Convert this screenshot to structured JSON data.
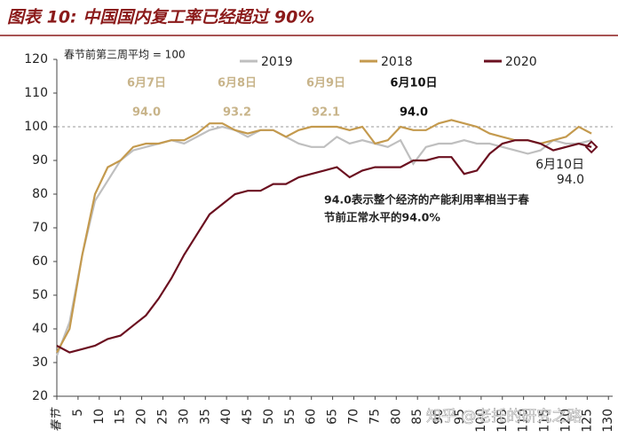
{
  "chart_data": {
    "type": "line",
    "title": "图表 10:  中国国内复工率已经超过 90%",
    "base_note": "春节前第三周平均 = 100",
    "x": [
      0,
      3,
      6,
      9,
      12,
      15,
      18,
      21,
      24,
      27,
      30,
      33,
      36,
      39,
      42,
      45,
      48,
      51,
      54,
      57,
      60,
      63,
      66,
      69,
      72,
      75,
      78,
      81,
      84,
      87,
      90,
      93,
      96,
      99,
      102,
      105,
      108,
      111,
      114,
      117,
      120,
      123,
      126
    ],
    "series": [
      {
        "name": "2019",
        "color": "#bfbfbf",
        "values": [
          32,
          42,
          62,
          78,
          84,
          90,
          93,
          94,
          95,
          96,
          95,
          97,
          99,
          100,
          99,
          97,
          99,
          99,
          97,
          95,
          94,
          94,
          97,
          95,
          96,
          95,
          94,
          96,
          89,
          94,
          95,
          95,
          96,
          95,
          95,
          94,
          93,
          92,
          93,
          96,
          95,
          95,
          96
        ]
      },
      {
        "name": "2018",
        "color": "#c49a4e",
        "values": [
          33,
          40,
          62,
          80,
          88,
          90,
          94,
          95,
          95,
          96,
          96,
          98,
          101,
          101,
          99,
          98,
          99,
          99,
          97,
          99,
          100,
          100,
          100,
          99,
          100,
          95,
          96,
          100,
          99,
          99,
          101,
          102,
          101,
          100,
          98,
          97,
          96,
          96,
          95,
          96,
          97,
          100,
          98
        ]
      },
      {
        "name": "2020",
        "color": "#6b1020",
        "values": [
          35,
          33,
          34,
          35,
          37,
          38,
          41,
          44,
          49,
          55,
          62,
          68,
          74,
          77,
          80,
          81,
          81,
          83,
          83,
          85,
          86,
          87,
          88,
          85,
          87,
          88,
          88,
          88,
          90,
          90,
          91,
          91,
          86,
          87,
          92,
          95,
          96,
          96,
          95,
          93,
          94,
          95,
          94
        ]
      }
    ],
    "xlim": [
      0,
      131
    ],
    "xticks": [
      {
        "value": 0,
        "label": "春节"
      },
      5,
      10,
      15,
      20,
      25,
      30,
      35,
      40,
      45,
      50,
      55,
      60,
      65,
      70,
      75,
      80,
      85,
      90,
      95,
      100,
      105,
      110,
      115,
      120,
      125,
      130
    ],
    "ylim": [
      20,
      120
    ],
    "yticks": [
      20,
      30,
      40,
      50,
      60,
      70,
      80,
      90,
      100,
      110,
      120
    ],
    "reference_line": 100,
    "date_labels": [
      {
        "date": "6月7日",
        "value": "94.0"
      },
      {
        "date": "6月8日",
        "value": "93.2"
      },
      {
        "date": "6月9日",
        "value": "92.1"
      },
      {
        "date": "6月10日",
        "value": "94.0"
      }
    ],
    "annotation": [
      "94.0表示整个经济的产能利用率相当于春",
      "节前正常水平的94.0%"
    ],
    "end_label": [
      "6月10日",
      "94.0"
    ],
    "watermark": "知乎 @老托的研究之路"
  }
}
